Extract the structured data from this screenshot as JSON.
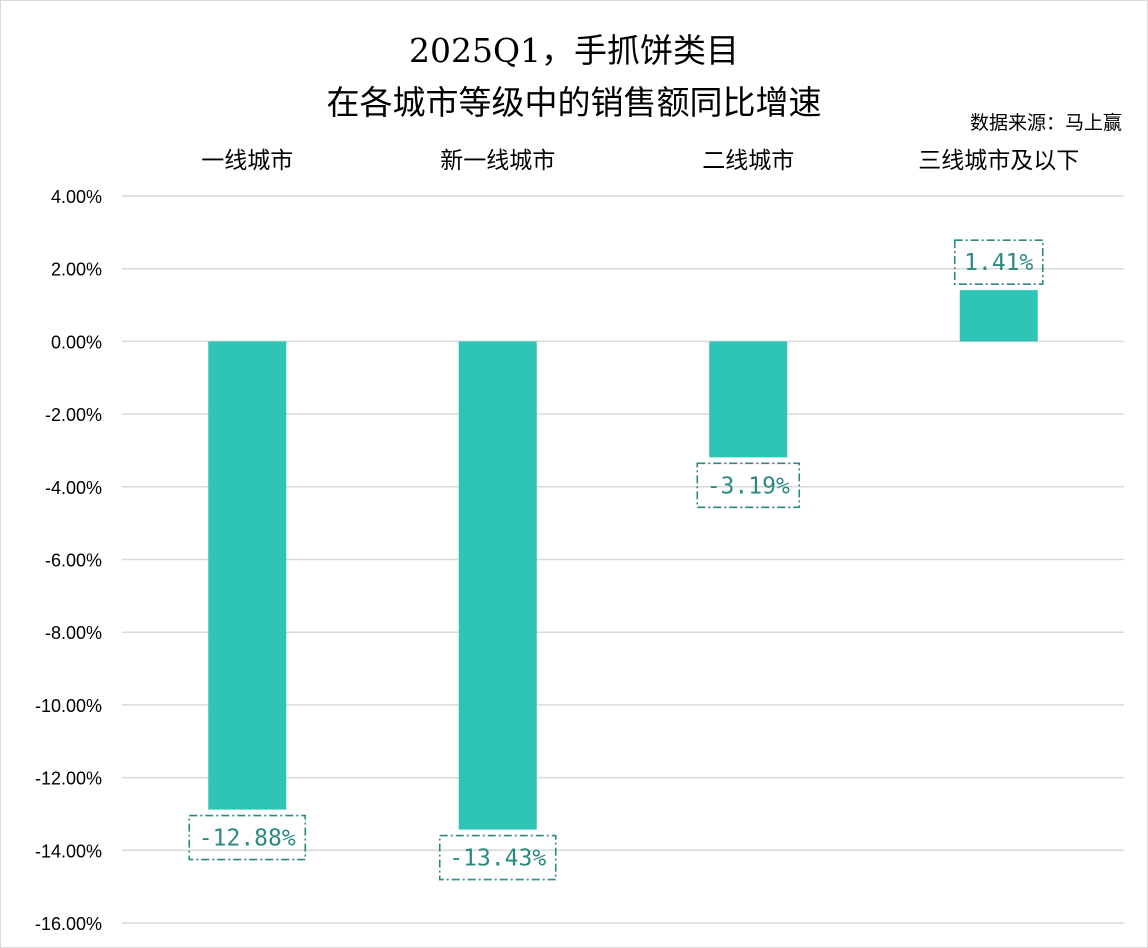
{
  "title_line1": "2025Q1，手抓饼类目",
  "title_line2": "在各城市等级中的销售额同比增速",
  "source": "数据来源：马上赢",
  "colors": {
    "bar": "#2ec4b6",
    "label_text": "#2b8a80",
    "label_border": "#2b8a80",
    "gridline": "#d9d9d9",
    "frame": "#d9d9d9"
  },
  "chart_data": {
    "type": "bar",
    "categories": [
      "一线城市",
      "新一线城市",
      "二线城市",
      "三线城市及以下"
    ],
    "values": [
      -12.88,
      -13.43,
      -3.19,
      1.41
    ],
    "value_labels": [
      "-12.88%",
      "-13.43%",
      "-3.19%",
      "1.41%"
    ],
    "ylim": [
      -16,
      4
    ],
    "y_ticks": [
      4,
      2,
      0,
      -2,
      -4,
      -6,
      -8,
      -10,
      -12,
      -14,
      -16
    ],
    "y_tick_labels": [
      "4.00%",
      "2.00%",
      "0.00%",
      "-2.00%",
      "-4.00%",
      "-6.00%",
      "-8.00%",
      "-10.00%",
      "-12.00%",
      "-14.00%",
      "-16.00%"
    ],
    "category_axis_position": "top",
    "grid": true,
    "legend": false,
    "xlabel": "",
    "ylabel": ""
  }
}
